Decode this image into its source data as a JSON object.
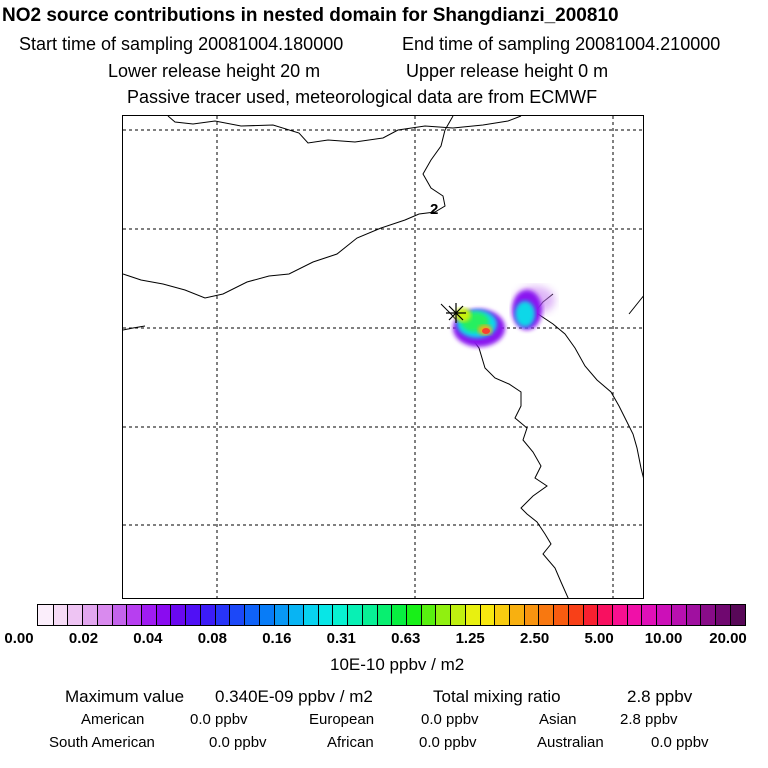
{
  "header": {
    "title": "NO2 source contributions in nested domain for Shangdianzi_200810",
    "start_label": "Start time of sampling 20081004.180000",
    "end_label": "End time of sampling 20081004.210000",
    "lower_label": "Lower release height   20 m",
    "upper_label": "Upper release height    0 m",
    "tracer_note": "Passive tracer used, meteorological data are from ECMWF"
  },
  "map": {
    "contour_label": "2",
    "gridlines": "dashed",
    "station_marker": "asterisk-icon"
  },
  "legend": {
    "ticks": [
      "0.00",
      "0.02",
      "0.04",
      "0.08",
      "0.16",
      "0.31",
      "0.63",
      "1.25",
      "2.50",
      "5.00",
      "10.00",
      "20.00"
    ],
    "unit": "10E-10 ppbv / m2",
    "colors": [
      "#fbeefb",
      "#f6dbf6",
      "#eec4f3",
      "#e2a6ef",
      "#d98aee",
      "#c463ec",
      "#b73ff0",
      "#a01cf2",
      "#8a0cf0",
      "#6a08f0",
      "#5010f5",
      "#3c1cf7",
      "#2834f8",
      "#1c48f8",
      "#0f62f8",
      "#087cf7",
      "#0898f5",
      "#08b4f3",
      "#08d3f0",
      "#08e6e6",
      "#08f2d2",
      "#08f0b4",
      "#08f096",
      "#08ef70",
      "#08ef40",
      "#18f018",
      "#58f010",
      "#90f010",
      "#c0f010",
      "#e8f010",
      "#f8e810",
      "#f8cc10",
      "#f8b010",
      "#f89410",
      "#f87810",
      "#f85c10",
      "#f84018",
      "#f82030",
      "#f81060",
      "#f81090",
      "#f010a8",
      "#e010b8",
      "#cc10b8",
      "#b810b0",
      "#a010a0",
      "#880c88",
      "#700870",
      "#580858"
    ]
  },
  "stats": {
    "max_label": "Maximum value",
    "max_value": "0.340E-09 ppbv / m2",
    "total_label": "Total mixing ratio",
    "total_value": "2.8 ppbv",
    "regions": [
      {
        "name": "American",
        "value": "0.0 ppbv"
      },
      {
        "name": "European",
        "value": "0.0 ppbv"
      },
      {
        "name": "Asian",
        "value": "2.8 ppbv"
      },
      {
        "name": "South American",
        "value": "0.0 ppbv"
      },
      {
        "name": "African",
        "value": "0.0 ppbv"
      },
      {
        "name": "Australian",
        "value": "0.0 ppbv"
      }
    ]
  }
}
